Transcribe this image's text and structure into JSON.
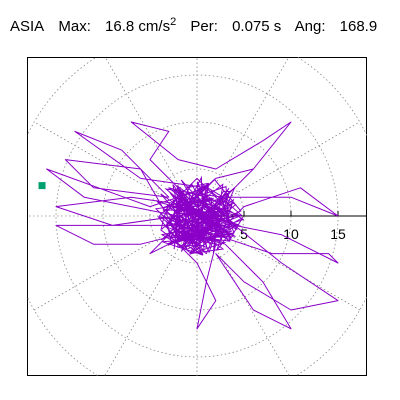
{
  "header": {
    "station": "ASIA",
    "max_label": "Max:",
    "max_value": "16.8 cm/s",
    "max_power": "2",
    "per_label": "Per:",
    "per_value": "0.075 s",
    "ang_label": "Ang:",
    "ang_value": "168.9"
  },
  "colors": {
    "trace": "#8a00c8",
    "marker": "#00a070",
    "grid": "#888888",
    "axis": "#000000",
    "frame": "#000000"
  },
  "chart_data": {
    "type": "polar-trace",
    "grid": true,
    "r_ticks": [
      5,
      10,
      15
    ],
    "r_tick_labels": [
      "5",
      "10",
      "15"
    ],
    "rings": [
      5,
      10,
      15,
      20
    ],
    "spoke_step_deg": 30,
    "max_magnitude": 16.8,
    "angle_of_max_deg": 168.9,
    "marker_polar": {
      "r": 16.8,
      "deg": 168.9
    },
    "trace": [
      [
        -2,
        1
      ],
      [
        1,
        2
      ],
      [
        -3,
        3
      ],
      [
        2,
        -1
      ],
      [
        -1,
        -3
      ],
      [
        3,
        1
      ],
      [
        0,
        4
      ],
      [
        -4,
        0
      ],
      [
        1,
        -4
      ],
      [
        4,
        3
      ],
      [
        -2,
        -2
      ],
      [
        -6,
        5
      ],
      [
        -14,
        6
      ],
      [
        -11,
        3
      ],
      [
        -3,
        2
      ],
      [
        -8,
        7
      ],
      [
        -13,
        9
      ],
      [
        -6,
        4
      ],
      [
        1,
        3
      ],
      [
        -5,
        1
      ],
      [
        -16,
        5
      ],
      [
        -12,
        2
      ],
      [
        -2,
        0
      ],
      [
        -9,
        -1
      ],
      [
        -15,
        1
      ],
      [
        -7,
        2
      ],
      [
        0,
        1
      ],
      [
        -5,
        6
      ],
      [
        -3,
        9
      ],
      [
        -7,
        10
      ],
      [
        -2,
        6
      ],
      [
        2,
        5
      ],
      [
        7,
        8
      ],
      [
        10,
        10
      ],
      [
        6,
        5
      ],
      [
        3,
        2
      ],
      [
        10,
        2
      ],
      [
        15,
        0
      ],
      [
        11,
        3
      ],
      [
        5,
        1
      ],
      [
        2,
        -2
      ],
      [
        8,
        -4
      ],
      [
        14,
        -4
      ],
      [
        15,
        -5
      ],
      [
        9,
        -2
      ],
      [
        4,
        -1
      ],
      [
        9,
        -5
      ],
      [
        15,
        -9
      ],
      [
        10,
        -10
      ],
      [
        5,
        -7
      ],
      [
        2,
        -4
      ],
      [
        6,
        -10
      ],
      [
        10,
        -12
      ],
      [
        7,
        -7
      ],
      [
        3,
        -3
      ],
      [
        -1,
        -2
      ],
      [
        -5,
        -4
      ],
      [
        -3,
        -2
      ],
      [
        0,
        -5
      ],
      [
        2,
        -9
      ],
      [
        0,
        -12
      ],
      [
        1,
        -7
      ],
      [
        2,
        -3
      ],
      [
        -2,
        -2
      ],
      [
        -6,
        -3
      ],
      [
        -11,
        -3
      ],
      [
        -15,
        -1
      ],
      [
        -9,
        -1
      ],
      [
        -4,
        -1
      ],
      [
        0,
        -1
      ],
      [
        3,
        2
      ],
      [
        6,
        5
      ],
      [
        2,
        4
      ],
      [
        -1,
        1
      ],
      [
        1,
        -1
      ],
      [
        -2,
        3
      ],
      [
        3,
        -2
      ]
    ]
  }
}
